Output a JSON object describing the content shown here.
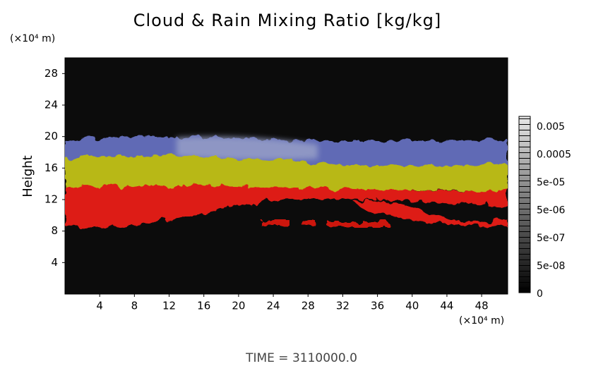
{
  "chart_data": {
    "type": "field",
    "title": "Cloud & Rain Mixing Ratio [kg/kg]",
    "y_label": "Height",
    "y_unit": "(×10⁴ m)",
    "x_unit": "(×10⁴ m)",
    "footer": "TIME = 3110000.0",
    "xlim": [
      0,
      51
    ],
    "xticks": [
      4,
      8,
      12,
      16,
      20,
      24,
      28,
      32,
      36,
      40,
      44,
      48
    ],
    "ylim": [
      0,
      30
    ],
    "yticks": [
      4,
      8,
      12,
      16,
      20,
      24,
      28
    ],
    "colorbar_ticks": [
      0,
      {
        "value": 5e-08,
        "label": "5e-08"
      },
      {
        "value": 5e-07,
        "label": "5e-07"
      },
      {
        "value": 5e-06,
        "label": "5e-06"
      },
      {
        "value": 5e-05,
        "label": "5e-05"
      },
      0.0005,
      0.005
    ]
  }
}
